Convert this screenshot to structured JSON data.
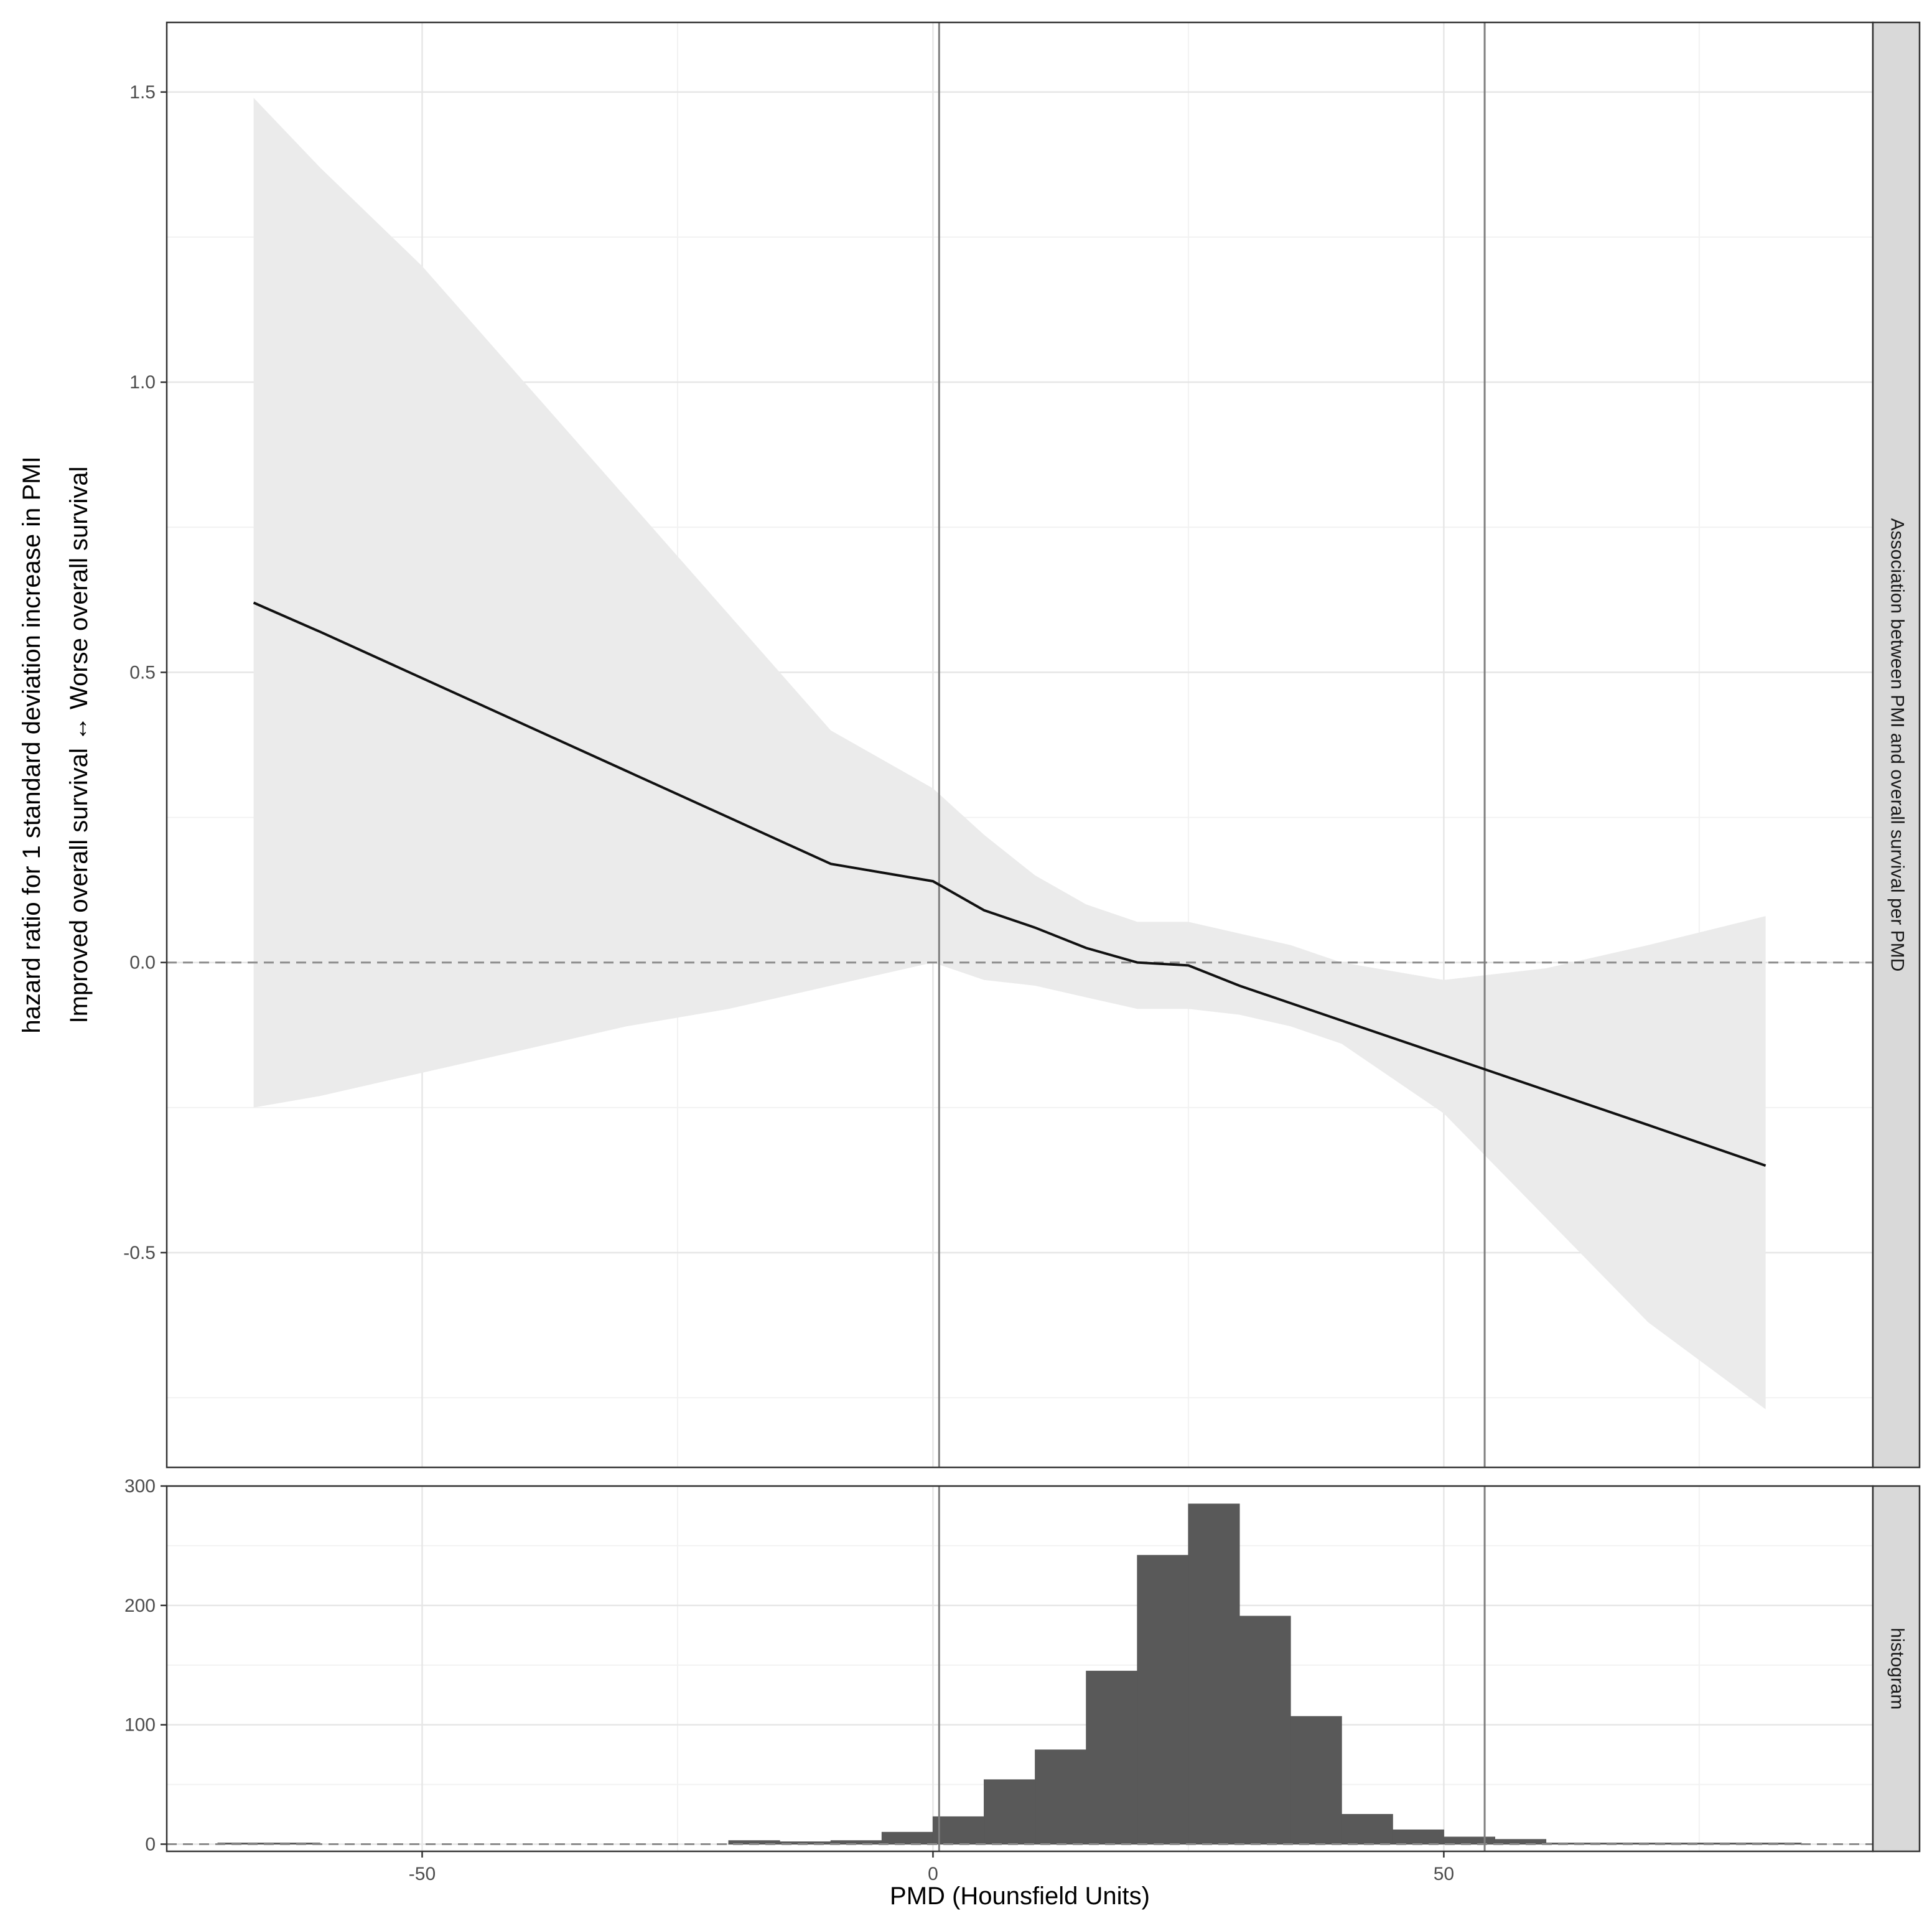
{
  "chart_data": [
    {
      "type": "line",
      "panel_label": "Association between PMI and overall survival per PMD",
      "ylabel_line1": "hazard ratio for 1 standard deviation increase in PMI",
      "ylabel_line2": "Improved overall survival ↔ Worse overall survival",
      "ylim": [
        -0.87,
        1.62
      ],
      "y_ticks": [
        -0.5,
        0.0,
        0.5,
        1.0,
        1.5
      ],
      "y_tick_labels": [
        "-0.5",
        "0.0",
        "0.5",
        "1.0",
        "1.5"
      ],
      "grid": true,
      "reference_line_y": 0.0,
      "vertical_lines_x": [
        0.6,
        54.0
      ],
      "estimate": {
        "x": [
          -66.5,
          -60,
          -50,
          -40,
          -30,
          -20,
          -10,
          0,
          5,
          10,
          15,
          20,
          25,
          30,
          35,
          40,
          50,
          60,
          70,
          81.5
        ],
        "y": [
          0.62,
          0.57,
          0.49,
          0.41,
          0.33,
          0.25,
          0.17,
          0.14,
          0.09,
          0.06,
          0.025,
          0.0,
          -0.005,
          -0.04,
          -0.07,
          -0.1,
          -0.16,
          -0.22,
          -0.28,
          -0.35
        ]
      },
      "confidence_band": {
        "x": [
          -66.5,
          -60,
          -50,
          -40,
          -30,
          -20,
          -10,
          0,
          5,
          10,
          15,
          20,
          25,
          30,
          35,
          40,
          50,
          60,
          70,
          81.5
        ],
        "lower": [
          -0.25,
          -0.23,
          -0.19,
          -0.15,
          -0.11,
          -0.08,
          -0.04,
          0.0,
          -0.03,
          -0.04,
          -0.06,
          -0.08,
          -0.08,
          -0.09,
          -0.11,
          -0.14,
          -0.26,
          -0.44,
          -0.62,
          -0.77
        ],
        "upper": [
          1.49,
          1.37,
          1.2,
          1.0,
          0.8,
          0.6,
          0.4,
          0.3,
          0.22,
          0.15,
          0.1,
          0.07,
          0.07,
          0.05,
          0.03,
          0.0,
          -0.03,
          -0.01,
          0.03,
          0.08
        ]
      }
    },
    {
      "type": "bar",
      "panel_label": "histogram",
      "xlabel": "PMD (Hounsfield Units)",
      "xlim": [
        -75,
        92
      ],
      "x_ticks": [
        -50,
        0,
        50
      ],
      "x_tick_labels": [
        "-50",
        "0",
        "50"
      ],
      "ylim": [
        -6,
        300
      ],
      "y_ticks": [
        0,
        100,
        200,
        300
      ],
      "y_tick_labels": [
        "0",
        "100",
        "200",
        "300"
      ],
      "grid": true,
      "reference_line_y": 0,
      "vertical_lines_x": [
        0.6,
        54.0
      ],
      "bin_width": 5,
      "bin_centers": [
        -67.5,
        -62.5,
        -57.5,
        -52.5,
        -47.5,
        -42.5,
        -37.5,
        -32.5,
        -27.5,
        -22.5,
        -17.5,
        -12.5,
        -7.5,
        -2.5,
        2.5,
        7.5,
        12.5,
        17.5,
        22.5,
        27.5,
        32.5,
        37.5,
        42.5,
        47.5,
        52.5,
        57.5,
        62.5,
        67.5,
        72.5,
        77.5,
        82.5
      ],
      "values": [
        1,
        1,
        0,
        0,
        0,
        0,
        0,
        0,
        0,
        0,
        3,
        2,
        3,
        10,
        23,
        54,
        79,
        145,
        242,
        285,
        191,
        107,
        25,
        12,
        6,
        4,
        1,
        1,
        1,
        1,
        1
      ]
    }
  ]
}
